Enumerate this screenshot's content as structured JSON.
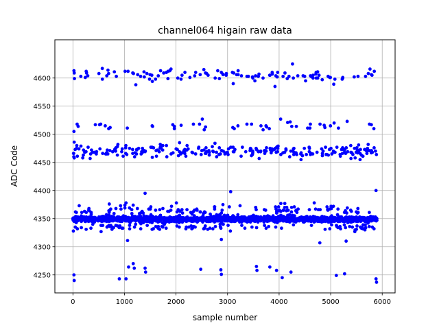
{
  "chart_data": {
    "type": "scatter",
    "title": "channel064 higain raw data",
    "xlabel": "sample number",
    "ylabel": "ADC Code",
    "xlim": [
      -350,
      6250
    ],
    "ylim": [
      4218,
      4668
    ],
    "xticks": [
      0,
      1000,
      2000,
      3000,
      4000,
      5000,
      6000
    ],
    "yticks": [
      4250,
      4300,
      4350,
      4400,
      4450,
      4500,
      4550,
      4600
    ],
    "xtick_labels": [
      "0",
      "1000",
      "2000",
      "3000",
      "4000",
      "5000",
      "6000"
    ],
    "ytick_labels": [
      "4250",
      "4300",
      "4350",
      "4400",
      "4450",
      "4500",
      "4550",
      "4600"
    ],
    "grid": true,
    "series": [
      {
        "color": "#0000ff",
        "marker": "circle",
        "bands": [
          {
            "center": 4605,
            "spread": 8,
            "count": 110,
            "x_range": [
              0,
              5900
            ]
          },
          {
            "center": 4470,
            "spread": 10,
            "count": 260,
            "x_range": [
              0,
              5900
            ]
          },
          {
            "center": 4515,
            "spread": 6,
            "count": 45,
            "x_range": [
              0,
              5900
            ]
          },
          {
            "center": 4349,
            "spread": 4,
            "count": 1800,
            "x_range": [
              0,
              5900
            ]
          },
          {
            "center": 4365,
            "spread": 10,
            "count": 140,
            "x_range": [
              0,
              5900
            ]
          },
          {
            "center": 4335,
            "spread": 6,
            "count": 110,
            "x_range": [
              0,
              5900
            ]
          }
        ],
        "points": [
          [
            20,
            4613
          ],
          [
            30,
            4599
          ],
          [
            20,
            4505
          ],
          [
            25,
            4486
          ],
          [
            15,
            4466
          ],
          [
            20,
            4250
          ],
          [
            25,
            4240
          ],
          [
            900,
            4243
          ],
          [
            1030,
            4243
          ],
          [
            1080,
            4264
          ],
          [
            1060,
            4311
          ],
          [
            1170,
            4270
          ],
          [
            1190,
            4262
          ],
          [
            1400,
            4262
          ],
          [
            1410,
            4255
          ],
          [
            1400,
            4395
          ],
          [
            570,
            4617
          ],
          [
            680,
            4614
          ],
          [
            1880,
            4613
          ],
          [
            2480,
            4260
          ],
          [
            2510,
            4527
          ],
          [
            2870,
            4259
          ],
          [
            2880,
            4251
          ],
          [
            2880,
            4313
          ],
          [
            3060,
            4398
          ],
          [
            3560,
            4265
          ],
          [
            3570,
            4258
          ],
          [
            3820,
            4264
          ],
          [
            3950,
            4258
          ],
          [
            4060,
            4245
          ],
          [
            4230,
            4255
          ],
          [
            4260,
            4625
          ],
          [
            4030,
            4527
          ],
          [
            4790,
            4307
          ],
          [
            5110,
            4249
          ],
          [
            5270,
            4252
          ],
          [
            5300,
            4310
          ],
          [
            5320,
            4523
          ],
          [
            5880,
            4243
          ],
          [
            5890,
            4237
          ],
          [
            5880,
            4400
          ],
          [
            5060,
            4589
          ],
          [
            1220,
            4588
          ],
          [
            3110,
            4590
          ],
          [
            3920,
            4585
          ]
        ]
      }
    ]
  }
}
